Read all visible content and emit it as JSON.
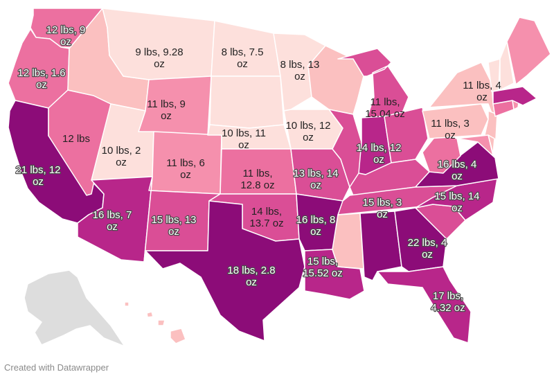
{
  "colors": {
    "c1": "#fde0dc",
    "c2": "#fbc0c0",
    "c3": "#f590ad",
    "c4": "#ec70a0",
    "c5": "#da4e96",
    "c6": "#b8268a",
    "c7": "#8c0c78",
    "border": "#ffffff",
    "nodata": "#dddddd"
  },
  "states": [
    {
      "id": "WA",
      "name": "Washington",
      "line1": "12 lbs, 9",
      "line2": "oz"
    },
    {
      "id": "OR",
      "name": "Oregon",
      "line1": "12 lbs, 1.6",
      "line2": "oz"
    },
    {
      "id": "CA",
      "name": "California",
      "line1": "21 lbs, 12",
      "line2": "oz"
    },
    {
      "id": "NV",
      "name": "Nevada",
      "line1": "12 lbs",
      "line2": ""
    },
    {
      "id": "ID",
      "name": "Idaho",
      "line1": "",
      "line2": ""
    },
    {
      "id": "MT",
      "name": "Montana",
      "line1": "9 lbs, 9.28",
      "line2": "oz"
    },
    {
      "id": "WY",
      "name": "Wyoming",
      "line1": "11 lbs, 9",
      "line2": "oz"
    },
    {
      "id": "UT",
      "name": "Utah",
      "line1": "10 lbs, 2",
      "line2": "oz"
    },
    {
      "id": "CO",
      "name": "Colorado",
      "line1": "11 lbs, 6",
      "line2": "oz"
    },
    {
      "id": "AZ",
      "name": "Arizona",
      "line1": "16 lbs, 7",
      "line2": "oz"
    },
    {
      "id": "NM",
      "name": "New Mexico",
      "line1": "15 lbs, 13",
      "line2": "oz"
    },
    {
      "id": "ND",
      "name": "North Dakota",
      "line1": "8 lbs, 7.5",
      "line2": "oz"
    },
    {
      "id": "SD",
      "name": "South Dakota",
      "line1": "",
      "line2": ""
    },
    {
      "id": "NE",
      "name": "Nebraska",
      "line1": "10 lbs, 11",
      "line2": "oz"
    },
    {
      "id": "KS",
      "name": "Kansas",
      "line1": "11 lbs,",
      "line2": "12.8 oz"
    },
    {
      "id": "OK",
      "name": "Oklahoma",
      "line1": "14 lbs,",
      "line2": "13.7 oz"
    },
    {
      "id": "TX",
      "name": "Texas",
      "line1": "18 lbs, 2.8",
      "line2": "oz"
    },
    {
      "id": "MN",
      "name": "Minnesota",
      "line1": "8 lbs, 13",
      "line2": "oz"
    },
    {
      "id": "IA",
      "name": "Iowa",
      "line1": "10 lbs, 12",
      "line2": "oz"
    },
    {
      "id": "MO",
      "name": "Missouri",
      "line1": "13 lbs, 14",
      "line2": "oz"
    },
    {
      "id": "AR",
      "name": "Arkansas",
      "line1": "16 lbs, 8",
      "line2": "oz"
    },
    {
      "id": "LA",
      "name": "Louisiana",
      "line1": "15 lbs,",
      "line2": "15.52 oz"
    },
    {
      "id": "WI",
      "name": "Wisconsin",
      "line1": "",
      "line2": ""
    },
    {
      "id": "IL",
      "name": "Illinois",
      "line1": "",
      "line2": ""
    },
    {
      "id": "MI",
      "name": "Michigan",
      "line1": "11 lbs,",
      "line2": "15.04 oz"
    },
    {
      "id": "IN",
      "name": "Indiana",
      "line1": "14 lbs, 12",
      "line2": "oz"
    },
    {
      "id": "OH",
      "name": "Ohio",
      "line1": "",
      "line2": ""
    },
    {
      "id": "KY",
      "name": "Kentucky",
      "line1": "",
      "line2": ""
    },
    {
      "id": "TN",
      "name": "Tennessee",
      "line1": "15 lbs, 3",
      "line2": "oz"
    },
    {
      "id": "MS",
      "name": "Mississippi",
      "line1": "",
      "line2": ""
    },
    {
      "id": "AL",
      "name": "Alabama",
      "line1": "",
      "line2": ""
    },
    {
      "id": "GA",
      "name": "Georgia",
      "line1": "22 lbs, 4",
      "line2": "oz"
    },
    {
      "id": "FL",
      "name": "Florida",
      "line1": "17 lbs,",
      "line2": "4.32 oz"
    },
    {
      "id": "SC",
      "name": "South Carolina",
      "line1": "",
      "line2": ""
    },
    {
      "id": "NC",
      "name": "North Carolina",
      "line1": "15 lbs, 14",
      "line2": "oz"
    },
    {
      "id": "VA",
      "name": "Virginia",
      "line1": "16 lbs, 4",
      "line2": "oz"
    },
    {
      "id": "WV",
      "name": "West Virginia",
      "line1": "",
      "line2": ""
    },
    {
      "id": "PA",
      "name": "Pennsylvania",
      "line1": "11 lbs, 3",
      "line2": "oz"
    },
    {
      "id": "NY",
      "name": "New York",
      "line1": "11 lbs, 4",
      "line2": "oz"
    },
    {
      "id": "NJ",
      "name": "New Jersey",
      "line1": "",
      "line2": ""
    },
    {
      "id": "MD",
      "name": "Maryland",
      "line1": "",
      "line2": ""
    },
    {
      "id": "DE",
      "name": "Delaware",
      "line1": "",
      "line2": ""
    },
    {
      "id": "CT",
      "name": "Connecticut",
      "line1": "",
      "line2": ""
    },
    {
      "id": "RI",
      "name": "Rhode Island",
      "line1": "",
      "line2": ""
    },
    {
      "id": "MA",
      "name": "Massachusetts",
      "line1": "",
      "line2": ""
    },
    {
      "id": "VT",
      "name": "Vermont",
      "line1": "",
      "line2": ""
    },
    {
      "id": "NH",
      "name": "New Hampshire",
      "line1": "",
      "line2": ""
    },
    {
      "id": "ME",
      "name": "Maine",
      "line1": "",
      "line2": ""
    },
    {
      "id": "AK",
      "name": "Alaska",
      "line1": "",
      "line2": ""
    },
    {
      "id": "HI",
      "name": "Hawaii",
      "line1": "",
      "line2": ""
    }
  ],
  "footer": {
    "credit": "Created with Datawrapper"
  }
}
